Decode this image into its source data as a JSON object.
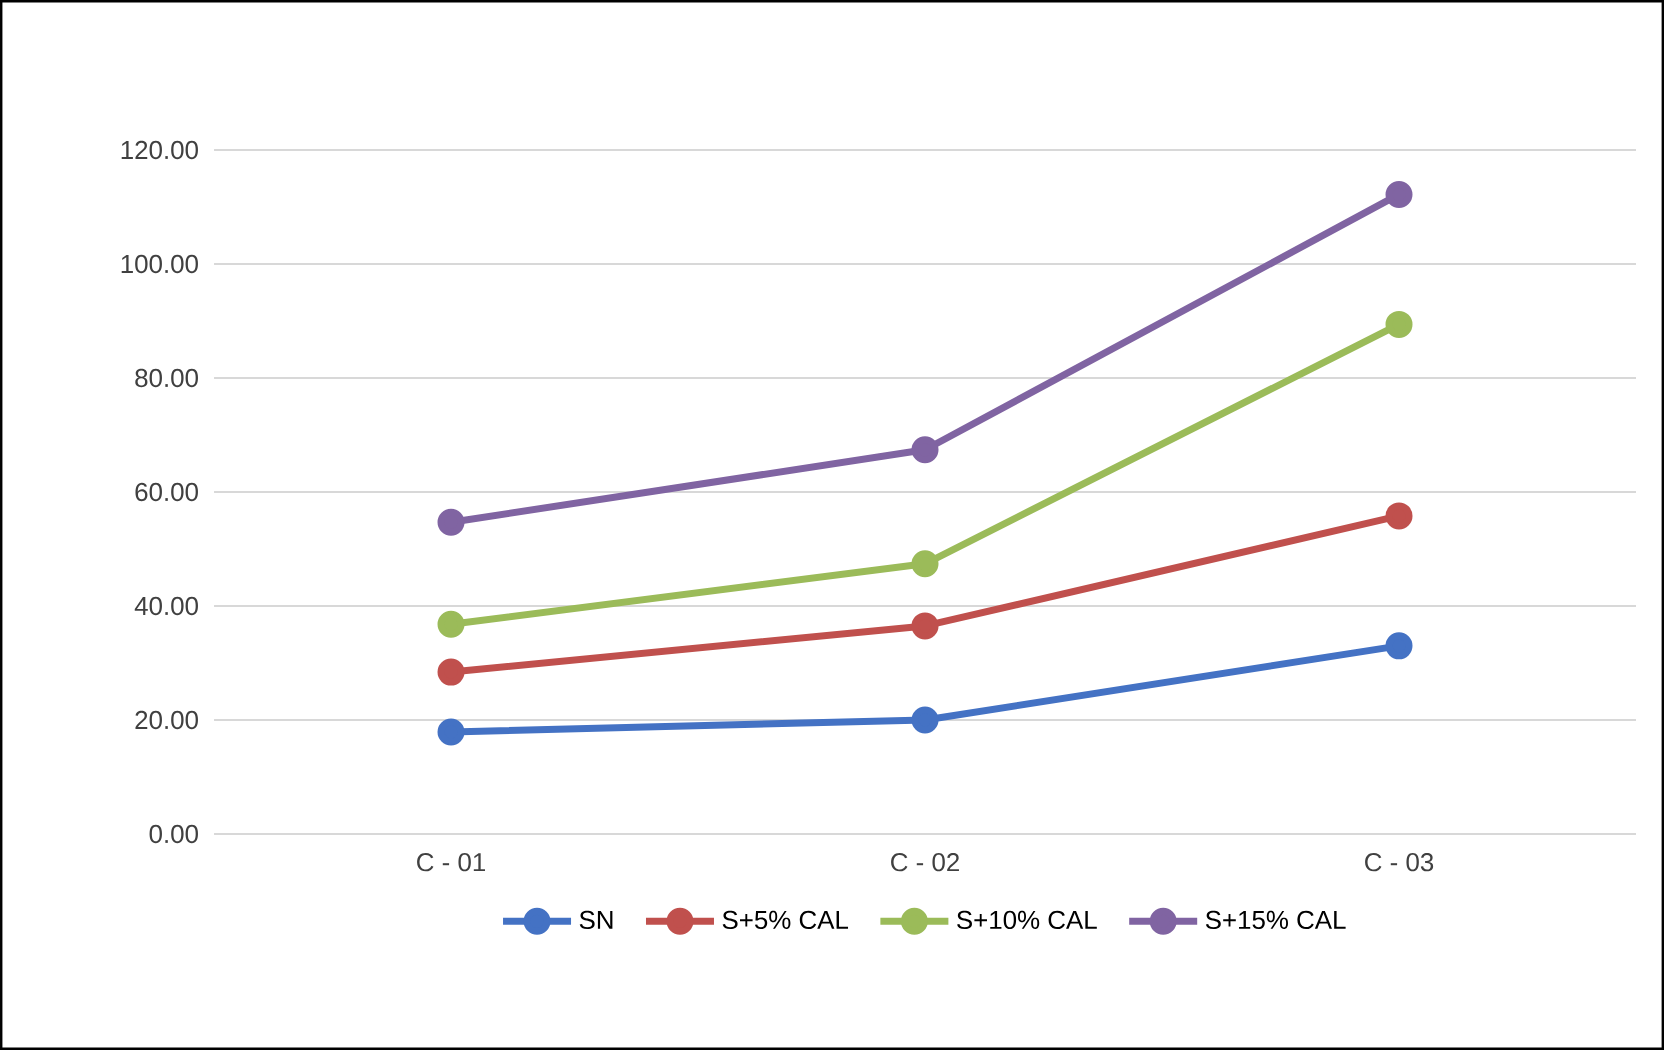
{
  "chart_data": {
    "type": "line",
    "categories": [
      "C - 01",
      "C - 02",
      "C - 03"
    ],
    "series": [
      {
        "name": "SN",
        "color": "#4472c4",
        "values": [
          17.9,
          20.0,
          33.0
        ]
      },
      {
        "name": "S+5% CAL",
        "color": "#c0504d",
        "values": [
          28.4,
          36.5,
          55.8
        ]
      },
      {
        "name": "S+10% CAL",
        "color": "#9bbb59",
        "values": [
          36.8,
          47.4,
          89.4
        ]
      },
      {
        "name": "S+15% CAL",
        "color": "#8064a2",
        "values": [
          54.7,
          67.4,
          112.2
        ]
      }
    ],
    "ylim": [
      0,
      120
    ],
    "yticks": [
      {
        "value": 0,
        "label": "0.00"
      },
      {
        "value": 20,
        "label": "20.00"
      },
      {
        "value": 40,
        "label": "40.00"
      },
      {
        "value": 60,
        "label": "60.00"
      },
      {
        "value": 80,
        "label": "80.00"
      },
      {
        "value": 100,
        "label": "100.00"
      },
      {
        "value": 120,
        "label": "120.00"
      }
    ],
    "grid": "y",
    "legend": "bottom",
    "marker": "circle",
    "line_style": "solid"
  }
}
